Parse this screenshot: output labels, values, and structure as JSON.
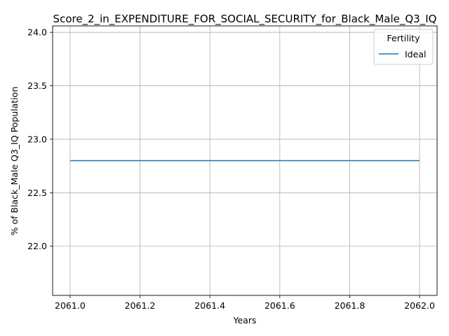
{
  "chart_data": {
    "type": "line",
    "title": "Score_2_in_EXPENDITURE_FOR_SOCIAL_SECURITY_for_Black_Male_Q3_IQ",
    "xlabel": "Years",
    "ylabel": "% of Black_Male Q3_IQ Population",
    "x": [
      2061.0,
      2062.0
    ],
    "series": [
      {
        "name": "Ideal",
        "values": [
          22.8,
          22.8
        ],
        "color": "#1f77b4"
      }
    ],
    "xlim": [
      2060.95,
      2062.05
    ],
    "ylim": [
      21.54,
      24.06
    ],
    "xticks": [
      2061.0,
      2061.2,
      2061.4,
      2061.6,
      2061.8,
      2062.0
    ],
    "xtick_labels": [
      "2061.0",
      "2061.2",
      "2061.4",
      "2061.6",
      "2061.8",
      "2062.0"
    ],
    "yticks": [
      22.0,
      22.5,
      23.0,
      23.5,
      24.0
    ],
    "ytick_labels": [
      "22.0",
      "22.5",
      "23.0",
      "23.5",
      "24.0"
    ],
    "grid": true,
    "legend": {
      "title": "Fertility",
      "placement": "top-right"
    }
  }
}
